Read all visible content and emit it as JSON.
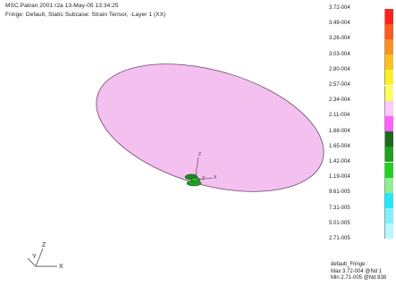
{
  "header": {
    "line1": "MSC.Patran 2001 r2a 13-May-05 13:34:25",
    "line2": "Fringe: Default, Static Subcase: Strain Tensor, -Layer 1 (XX)"
  },
  "legend": {
    "values": [
      "3.72-004",
      "3.49-004",
      "3.26-004",
      "3.03-004",
      "2.80-004",
      "2.57-004",
      "2.34-004",
      "2.11-004",
      "1.88-004",
      "1.65-004",
      "1.42-004",
      "1.19-004",
      "9.61-005",
      "7.31-005",
      "5.01-005",
      "2.71-005"
    ],
    "colors": [
      "#ff2020",
      "#ff5a1e",
      "#ff9020",
      "#ffc020",
      "#fff020",
      "#ffff60",
      "#ffc8ff",
      "#ff60ff",
      "#1e6a1e",
      "#20a020",
      "#20d020",
      "#90f090",
      "#20e8ff",
      "#80f0ff",
      "#b8f8ff"
    ]
  },
  "footer": {
    "line1": "default_Fringe :",
    "line2": "Max 3.72-004 @Nd 1",
    "line3": "Min 2.71-005 @Nd 838"
  },
  "model": {
    "fill_color": "#f4c0f0",
    "edge_color": "#6a4a6a"
  },
  "triad": {
    "x_label": "X",
    "y_label": "Y",
    "z_label": "Z"
  },
  "center_tags": {
    "z_label": "Z",
    "y_label": "Y",
    "x_label": "X"
  }
}
